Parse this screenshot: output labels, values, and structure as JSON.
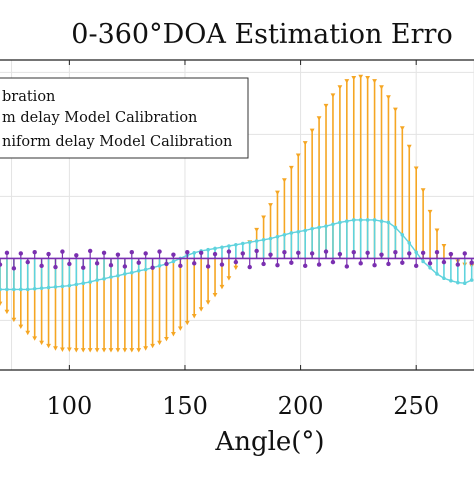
{
  "chart_data": {
    "type": "stem",
    "title": "0-360°DOA Estimation Erro",
    "xlabel": "Angle(°)",
    "ylabel": "",
    "xlim": [
      70,
      275
    ],
    "ylim": [
      -18,
      32
    ],
    "xticks": [
      100,
      150,
      200,
      250
    ],
    "xtick_labels": [
      "100",
      "150",
      "200",
      "250"
    ],
    "grid": true,
    "legend": {
      "position": "top-left",
      "entries": [
        "bration",
        "m delay Model Calibration",
        "niform delay Model Calibration"
      ]
    },
    "series": [
      {
        "name": "bration",
        "color": "#f5a623",
        "marker": "triangle-down",
        "x": [
          70,
          73,
          76,
          79,
          82,
          85,
          88,
          91,
          94,
          97,
          100,
          103,
          106,
          109,
          112,
          115,
          118,
          121,
          124,
          127,
          130,
          133,
          136,
          139,
          142,
          145,
          148,
          151,
          154,
          157,
          160,
          163,
          166,
          169,
          172,
          175,
          178,
          181,
          184,
          187,
          190,
          193,
          196,
          199,
          202,
          205,
          208,
          211,
          214,
          217,
          220,
          223,
          226,
          229,
          232,
          235,
          238,
          241,
          244,
          247,
          250,
          253,
          256,
          259,
          262,
          265,
          268,
          271,
          274
        ],
        "y": [
          -7.3,
          -8.6,
          -9.9,
          -11,
          -12,
          -12.9,
          -13.6,
          -14.1,
          -14.5,
          -14.7,
          -14.7,
          -14.8,
          -14.8,
          -14.8,
          -14.8,
          -14.8,
          -14.8,
          -14.8,
          -14.8,
          -14.8,
          -14.8,
          -14.5,
          -14.1,
          -13.6,
          -13,
          -12.2,
          -11.3,
          -10.4,
          -9.3,
          -8.2,
          -7.1,
          -5.9,
          -4.6,
          -3.2,
          -1.5,
          0.6,
          2.6,
          4.6,
          6.6,
          8.6,
          10.6,
          12.6,
          14.6,
          16.6,
          18.6,
          20.6,
          22.6,
          24.6,
          26.3,
          27.6,
          28.6,
          29.1,
          29.3,
          29.1,
          28.6,
          27.6,
          26,
          24,
          21,
          18,
          14.5,
          11,
          7.5,
          4.5,
          2,
          0.5,
          -0.5,
          -1,
          -1.2
        ]
      },
      {
        "name": "m delay Model Calibration",
        "color": "#5fd3dd",
        "marker": "circle",
        "x": [
          70,
          73,
          76,
          79,
          82,
          85,
          88,
          91,
          94,
          97,
          100,
          103,
          106,
          109,
          112,
          115,
          118,
          121,
          124,
          127,
          130,
          133,
          136,
          139,
          142,
          145,
          148,
          151,
          154,
          157,
          160,
          163,
          166,
          169,
          172,
          175,
          178,
          181,
          184,
          187,
          190,
          193,
          196,
          199,
          202,
          205,
          208,
          211,
          214,
          217,
          220,
          223,
          226,
          229,
          232,
          235,
          238,
          241,
          244,
          247,
          250,
          253,
          256,
          259,
          262,
          265,
          268,
          271,
          274
        ],
        "y": [
          -5,
          -5,
          -5,
          -5,
          -5,
          -4.9,
          -4.8,
          -4.7,
          -4.6,
          -4.5,
          -4.4,
          -4.2,
          -4,
          -3.8,
          -3.5,
          -3.3,
          -3,
          -2.8,
          -2.5,
          -2.3,
          -2,
          -1.8,
          -1.5,
          -1.2,
          -0.9,
          -0.5,
          0,
          0.5,
          0.9,
          1.2,
          1.4,
          1.6,
          1.8,
          2,
          2.2,
          2.4,
          2.6,
          2.8,
          3,
          3.2,
          3.5,
          3.8,
          4.1,
          4.3,
          4.5,
          4.8,
          5,
          5.2,
          5.5,
          5.8,
          6,
          6.2,
          6.2,
          6.2,
          6.2,
          6,
          5.8,
          5,
          3.8,
          2.5,
          1,
          -0.5,
          -1.5,
          -2.5,
          -3.2,
          -3.6,
          -3.9,
          -4,
          -3.5
        ]
      },
      {
        "name": "niform delay Model Calibration",
        "color": "#7a2fb0",
        "marker": "dot",
        "x": [
          70,
          73,
          76,
          79,
          82,
          85,
          88,
          91,
          94,
          97,
          100,
          103,
          106,
          109,
          112,
          115,
          118,
          121,
          124,
          127,
          130,
          133,
          136,
          139,
          142,
          145,
          148,
          151,
          154,
          157,
          160,
          163,
          166,
          169,
          172,
          175,
          178,
          181,
          184,
          187,
          190,
          193,
          196,
          199,
          202,
          205,
          208,
          211,
          214,
          217,
          220,
          223,
          226,
          229,
          232,
          235,
          238,
          241,
          244,
          247,
          250,
          253,
          256,
          259,
          262,
          265,
          268,
          271,
          274
        ],
        "y": [
          -1.0,
          0.9,
          -1.6,
          0.8,
          -0.6,
          1.0,
          -1.2,
          0.7,
          -1.4,
          1.1,
          -0.9,
          0.5,
          -1.5,
          1.2,
          -0.8,
          0.9,
          -1.1,
          0.6,
          -1.3,
          1.0,
          -0.7,
          0.8,
          -1.5,
          1.1,
          -0.9,
          0.6,
          -1.2,
          1.0,
          -0.8,
          0.9,
          -1.3,
          0.7,
          -1.0,
          1.1,
          -0.6,
          0.8,
          -1.4,
          1.2,
          -0.9,
          0.6,
          -1.1,
          1.0,
          -0.7,
          0.9,
          -1.2,
          0.8,
          -1.0,
          1.1,
          -0.6,
          0.7,
          -1.3,
          1.0,
          -0.8,
          0.9,
          -1.1,
          0.6,
          -0.9,
          1.0,
          -0.7,
          0.8,
          -1.2,
          0.9,
          -0.8,
          1.0,
          -0.6,
          0.7,
          -1.0,
          0.8,
          -0.7
        ]
      }
    ]
  }
}
